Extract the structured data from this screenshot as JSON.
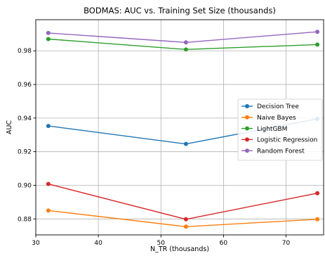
{
  "chart_data": {
    "type": "line",
    "title": "BODMAS: AUC vs. Training Set Size (thousands)",
    "xlabel": "N_TR (thousands)",
    "ylabel": "AUC",
    "x": [
      32,
      54,
      75
    ],
    "xlim": [
      30,
      76
    ],
    "ylim": [
      0.8705,
      0.9985
    ],
    "xticks": [
      30,
      40,
      50,
      60,
      70
    ],
    "xtick_labels": [
      "30",
      "40",
      "50",
      "60",
      "70"
    ],
    "yticks": [
      0.88,
      0.9,
      0.92,
      0.94,
      0.96,
      0.98
    ],
    "ytick_labels": [
      "0.88",
      "0.90",
      "0.92",
      "0.94",
      "0.96",
      "0.98"
    ],
    "grid": true,
    "legend_position": "center-right",
    "series": [
      {
        "name": "Decision Tree",
        "color": "#1f77b4",
        "values": [
          0.9353,
          0.9246,
          0.9395
        ]
      },
      {
        "name": "Naive Bayes",
        "color": "#ff7f0e",
        "values": [
          0.885,
          0.8754,
          0.8798
        ]
      },
      {
        "name": "LightGBM",
        "color": "#2ca02c",
        "values": [
          0.987,
          0.9808,
          0.9837
        ]
      },
      {
        "name": "Logistic Regression",
        "color": "#d62728",
        "values": [
          0.9008,
          0.8798,
          0.8953
        ]
      },
      {
        "name": "Random Forest",
        "color": "#9467bd",
        "values": [
          0.9906,
          0.985,
          0.9913
        ]
      }
    ]
  }
}
